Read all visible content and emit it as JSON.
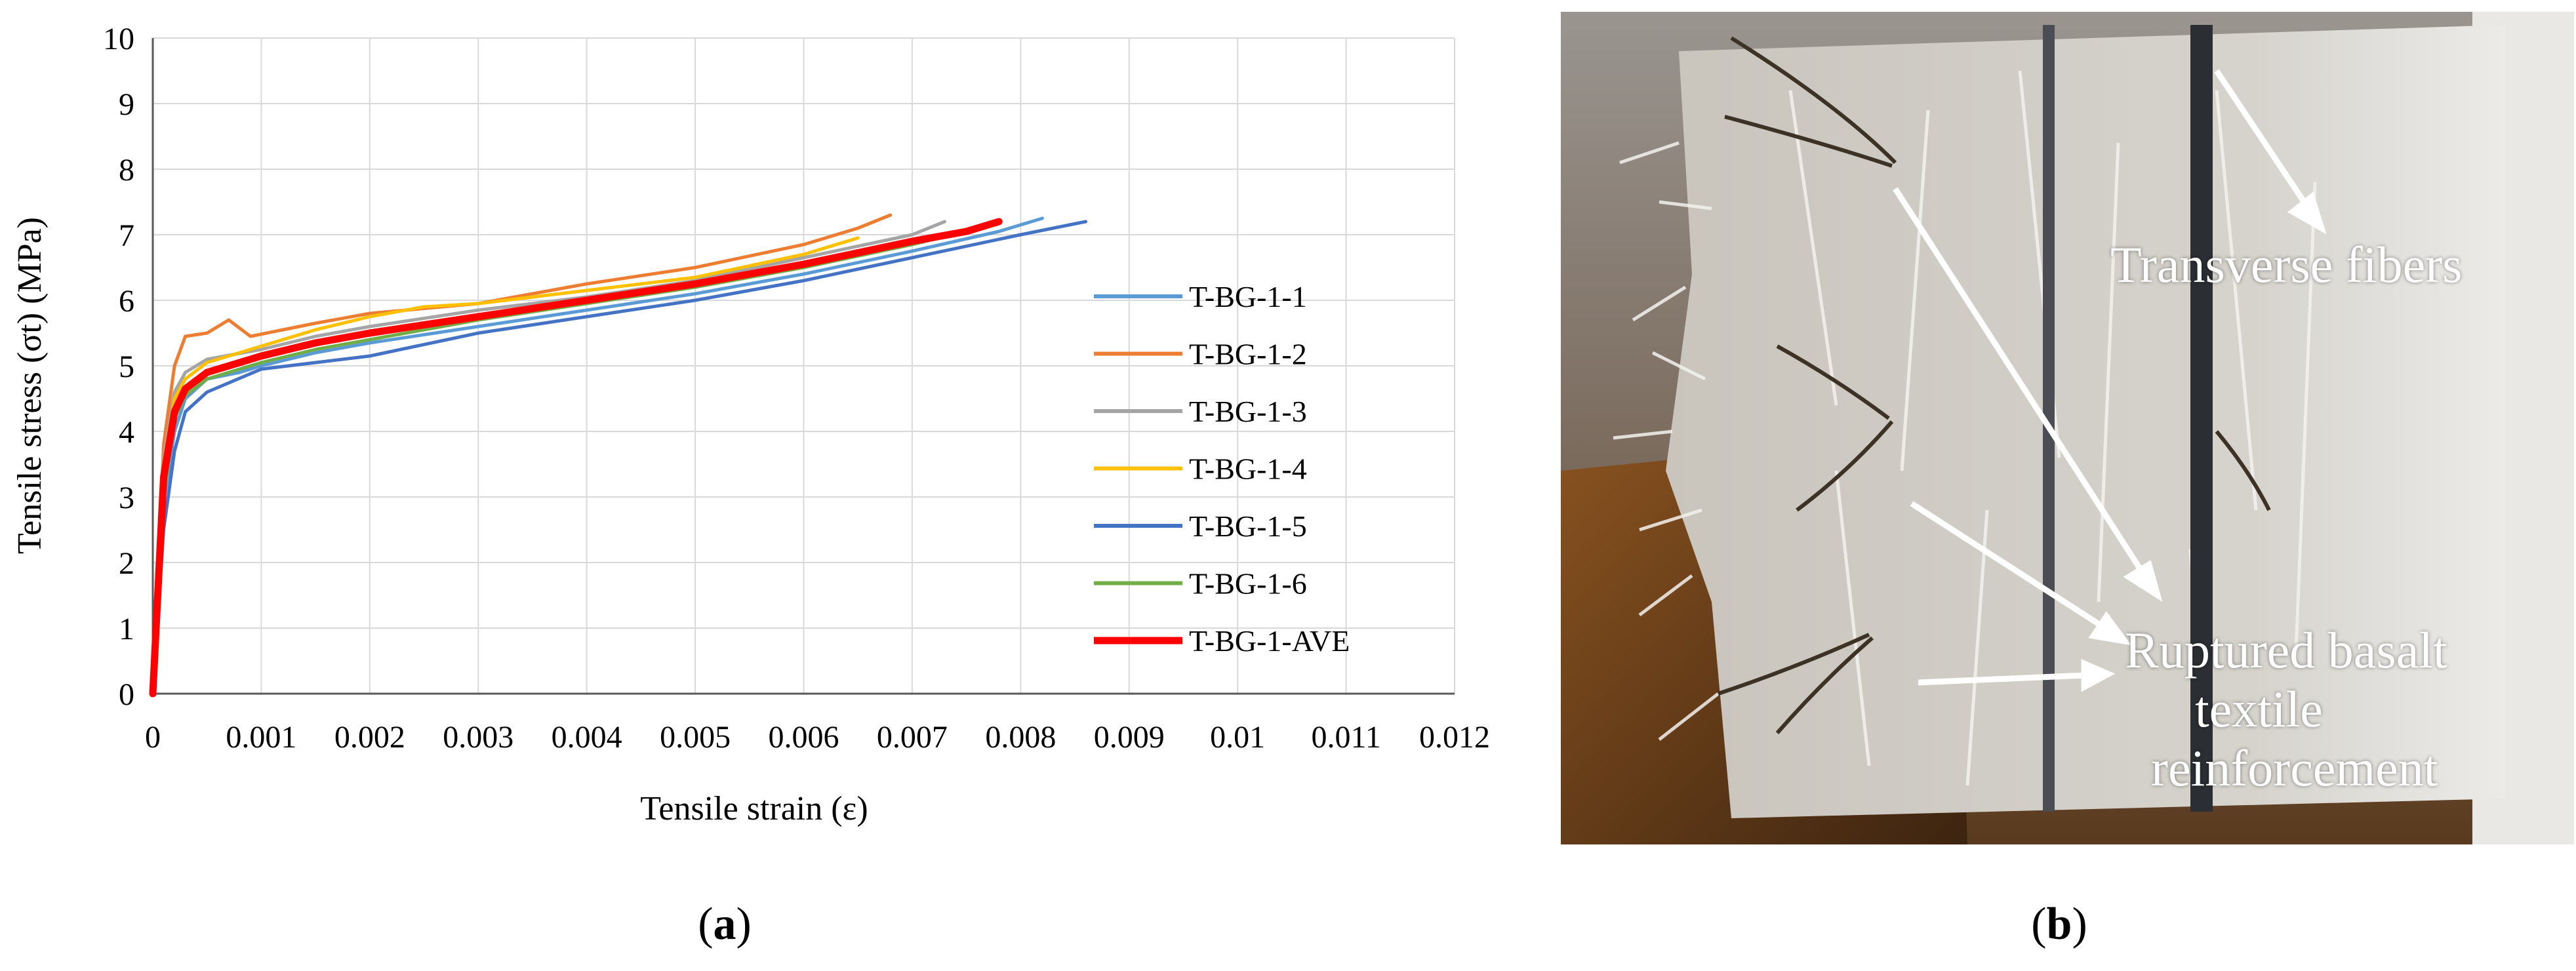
{
  "chart_data": {
    "type": "line",
    "xlabel": "Tensile strain (ε)",
    "ylabel": "Tensile stress (σt) (MPa)",
    "xlim": [
      0,
      0.012
    ],
    "ylim": [
      0,
      10
    ],
    "xticks": [
      "0",
      "0.001",
      "0.002",
      "0.003",
      "0.004",
      "0.005",
      "0.006",
      "0.007",
      "0.008",
      "0.009",
      "0.01",
      "0.011",
      "0.012"
    ],
    "yticks": [
      "0",
      "1",
      "2",
      "3",
      "4",
      "5",
      "6",
      "7",
      "8",
      "9",
      "10"
    ],
    "grid": true,
    "legend_position": "right",
    "series": [
      {
        "name": "T-BG-1-1",
        "color": "#5b9bd5",
        "x": [
          0,
          0.0001,
          0.0002,
          0.0003,
          0.0005,
          0.0008,
          0.001,
          0.0015,
          0.002,
          0.003,
          0.004,
          0.005,
          0.006,
          0.007,
          0.0078,
          0.0082
        ],
        "y": [
          0,
          2.9,
          4.0,
          4.5,
          4.8,
          4.9,
          5.0,
          5.2,
          5.35,
          5.6,
          5.85,
          6.1,
          6.4,
          6.75,
          7.05,
          7.25
        ]
      },
      {
        "name": "T-BG-1-2",
        "color": "#ed7d31",
        "x": [
          0,
          0.0001,
          0.0002,
          0.0003,
          0.0005,
          0.0007,
          0.0009,
          0.0012,
          0.0015,
          0.002,
          0.003,
          0.004,
          0.005,
          0.006,
          0.0065,
          0.0068
        ],
        "y": [
          0,
          3.8,
          5.0,
          5.45,
          5.5,
          5.7,
          5.45,
          5.55,
          5.65,
          5.8,
          5.95,
          6.25,
          6.5,
          6.85,
          7.1,
          7.3
        ]
      },
      {
        "name": "T-BG-1-3",
        "color": "#a5a5a5",
        "x": [
          0,
          0.0001,
          0.0002,
          0.0003,
          0.0005,
          0.001,
          0.0015,
          0.002,
          0.003,
          0.004,
          0.005,
          0.006,
          0.007,
          0.0073
        ],
        "y": [
          0,
          3.6,
          4.6,
          4.9,
          5.1,
          5.25,
          5.45,
          5.6,
          5.85,
          6.05,
          6.3,
          6.65,
          7.0,
          7.2
        ]
      },
      {
        "name": "T-BG-1-4",
        "color": "#ffc000",
        "x": [
          0,
          0.0001,
          0.0002,
          0.0003,
          0.0005,
          0.001,
          0.0015,
          0.002,
          0.0025,
          0.003,
          0.004,
          0.005,
          0.006,
          0.0065
        ],
        "y": [
          0,
          3.5,
          4.5,
          4.8,
          5.05,
          5.3,
          5.55,
          5.75,
          5.9,
          5.95,
          6.15,
          6.35,
          6.7,
          6.95
        ]
      },
      {
        "name": "T-BG-1-5",
        "color": "#4472c4",
        "x": [
          0,
          0.0001,
          0.0002,
          0.0003,
          0.0005,
          0.001,
          0.0015,
          0.002,
          0.003,
          0.004,
          0.005,
          0.006,
          0.007,
          0.008,
          0.0086
        ],
        "y": [
          0,
          2.5,
          3.7,
          4.3,
          4.6,
          4.95,
          5.05,
          5.15,
          5.5,
          5.75,
          6.0,
          6.3,
          6.65,
          7.0,
          7.2
        ]
      },
      {
        "name": "T-BG-1-6",
        "color": "#70ad47",
        "x": [
          0,
          0.0001,
          0.0002,
          0.0003,
          0.0005,
          0.001,
          0.0015,
          0.002,
          0.003,
          0.004,
          0.005,
          0.006,
          0.007,
          0.0075
        ],
        "y": [
          0,
          3.0,
          4.2,
          4.55,
          4.8,
          5.05,
          5.25,
          5.4,
          5.7,
          5.95,
          6.2,
          6.5,
          6.85,
          7.05
        ]
      },
      {
        "name": "T-BG-1-AVE",
        "color": "#ff0000",
        "x": [
          0,
          0.0001,
          0.0002,
          0.0003,
          0.0005,
          0.001,
          0.0015,
          0.002,
          0.003,
          0.004,
          0.005,
          0.006,
          0.007,
          0.0075,
          0.0078
        ],
        "y": [
          0,
          3.3,
          4.3,
          4.65,
          4.9,
          5.15,
          5.35,
          5.5,
          5.75,
          6.0,
          6.25,
          6.55,
          6.9,
          7.05,
          7.2
        ]
      }
    ]
  },
  "captions": {
    "a": "a",
    "b": "b"
  },
  "photo": {
    "labels": {
      "transverse_fibers": "Transverse fibers",
      "ruptured_line1": "Ruptured basalt",
      "ruptured_line2": "textile",
      "ruptured_line3": "reinforcement"
    }
  }
}
